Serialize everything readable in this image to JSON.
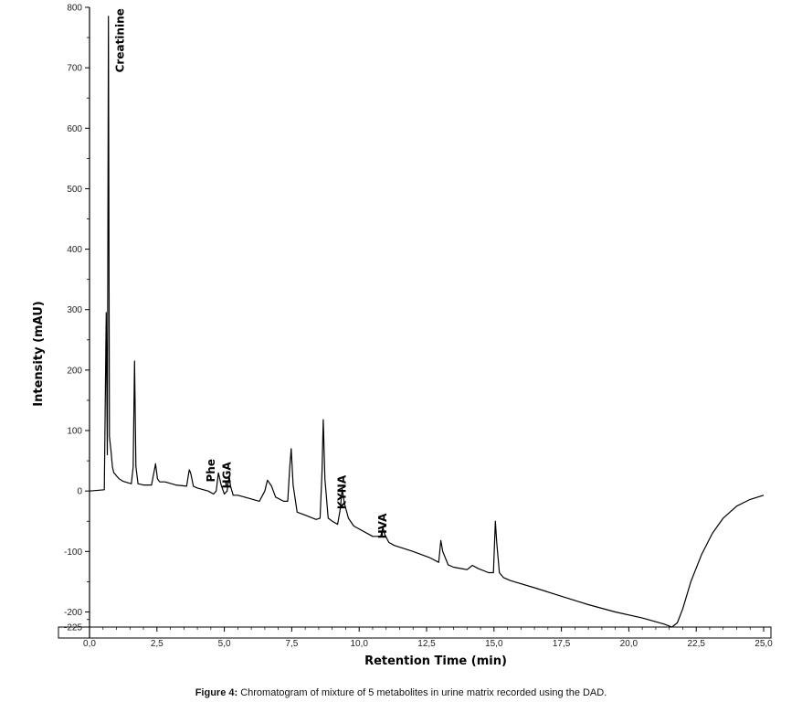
{
  "figure": {
    "caption_prefix": "Figure 4:",
    "caption_text": " Chromatogram of mixture of 5 metabolites in urine matrix recorded using the DAD."
  },
  "chart_data": {
    "type": "line",
    "title": "",
    "xlabel": "Retention Time (min)",
    "ylabel": "Intensity (mAU)",
    "xlim": [
      0.0,
      25.0
    ],
    "ylim": [
      -225,
      800
    ],
    "x_ticks": [
      0.0,
      2.5,
      5.0,
      7.5,
      10.0,
      12.5,
      15.0,
      17.5,
      20.0,
      22.5,
      25.0
    ],
    "x_tick_labels": [
      "0,0",
      "2,5",
      "5,0",
      "7,5",
      "10,0",
      "12,5",
      "15,0",
      "17,5",
      "20,0",
      "22,5",
      "25,0"
    ],
    "y_ticks": [
      -225,
      -200,
      -100,
      0,
      100,
      200,
      300,
      400,
      500,
      600,
      700,
      800
    ],
    "y_tick_labels": [
      "-225",
      "-200",
      "-100",
      "0",
      "100",
      "200",
      "300",
      "400",
      "500",
      "600",
      "700",
      "800"
    ],
    "grid": false,
    "line_color": "#000000",
    "series": [
      {
        "x": [
          0.0,
          0.55,
          0.62,
          0.66,
          0.7,
          0.74,
          0.8,
          0.85,
          0.9,
          0.95,
          1.0,
          1.1,
          1.25,
          1.4,
          1.55,
          1.62,
          1.67,
          1.72,
          1.8,
          2.0,
          2.3,
          2.45,
          2.52,
          2.6,
          2.8,
          3.2,
          3.6,
          3.7,
          3.75,
          3.85,
          4.0,
          4.4,
          4.6,
          4.7,
          4.78,
          4.88,
          5.0,
          5.1,
          5.18,
          5.23,
          5.33,
          5.5,
          5.9,
          6.3,
          6.5,
          6.6,
          6.75,
          6.9,
          7.2,
          7.35,
          7.42,
          7.48,
          7.55,
          7.7,
          8.0,
          8.4,
          8.55,
          8.62,
          8.67,
          8.73,
          8.85,
          9.0,
          9.2,
          9.3,
          9.37,
          9.45,
          9.6,
          9.8,
          10.5,
          10.8,
          10.88,
          10.95,
          11.1,
          11.3,
          12.0,
          12.6,
          12.95,
          13.03,
          13.1,
          13.3,
          13.5,
          14.0,
          14.2,
          14.4,
          14.8,
          14.98,
          15.05,
          15.1,
          15.2,
          15.35,
          15.6,
          16.5,
          17.5,
          18.5,
          19.5,
          20.5,
          21.3,
          21.6,
          21.8,
          22.0,
          22.3,
          22.7,
          23.1,
          23.5,
          24.0,
          24.5,
          25.0
        ],
        "y": [
          0,
          2,
          295,
          60,
          785,
          90,
          65,
          40,
          30,
          28,
          25,
          20,
          16,
          14,
          12,
          40,
          215,
          40,
          12,
          10,
          10,
          45,
          20,
          15,
          15,
          10,
          8,
          35,
          30,
          8,
          5,
          0,
          -5,
          0,
          30,
          10,
          -5,
          0,
          25,
          8,
          -7,
          -7,
          -12,
          -17,
          0,
          18,
          8,
          -10,
          -17,
          -17,
          35,
          70,
          10,
          -35,
          -40,
          -47,
          -45,
          30,
          118,
          20,
          -45,
          -50,
          -55,
          -30,
          3,
          -20,
          -45,
          -58,
          -75,
          -75,
          -60,
          -72,
          -85,
          -90,
          -100,
          -110,
          -118,
          -82,
          -100,
          -122,
          -126,
          -130,
          -123,
          -128,
          -135,
          -135,
          -50,
          -85,
          -135,
          -143,
          -148,
          -160,
          -174,
          -188,
          -200,
          -210,
          -220,
          -225,
          -218,
          -195,
          -150,
          -105,
          -70,
          -45,
          -25,
          -14,
          -7
        ]
      }
    ],
    "annotations": [
      {
        "text": "Creatinine",
        "x": 0.72,
        "y": 780
      },
      {
        "text": "Phe",
        "x": 4.78,
        "y": 35
      },
      {
        "text": "HGA",
        "x": 5.23,
        "y": 30
      },
      {
        "text": "KYNA",
        "x": 9.37,
        "y": 8
      },
      {
        "text": "HVA",
        "x": 10.88,
        "y": -55
      }
    ]
  }
}
